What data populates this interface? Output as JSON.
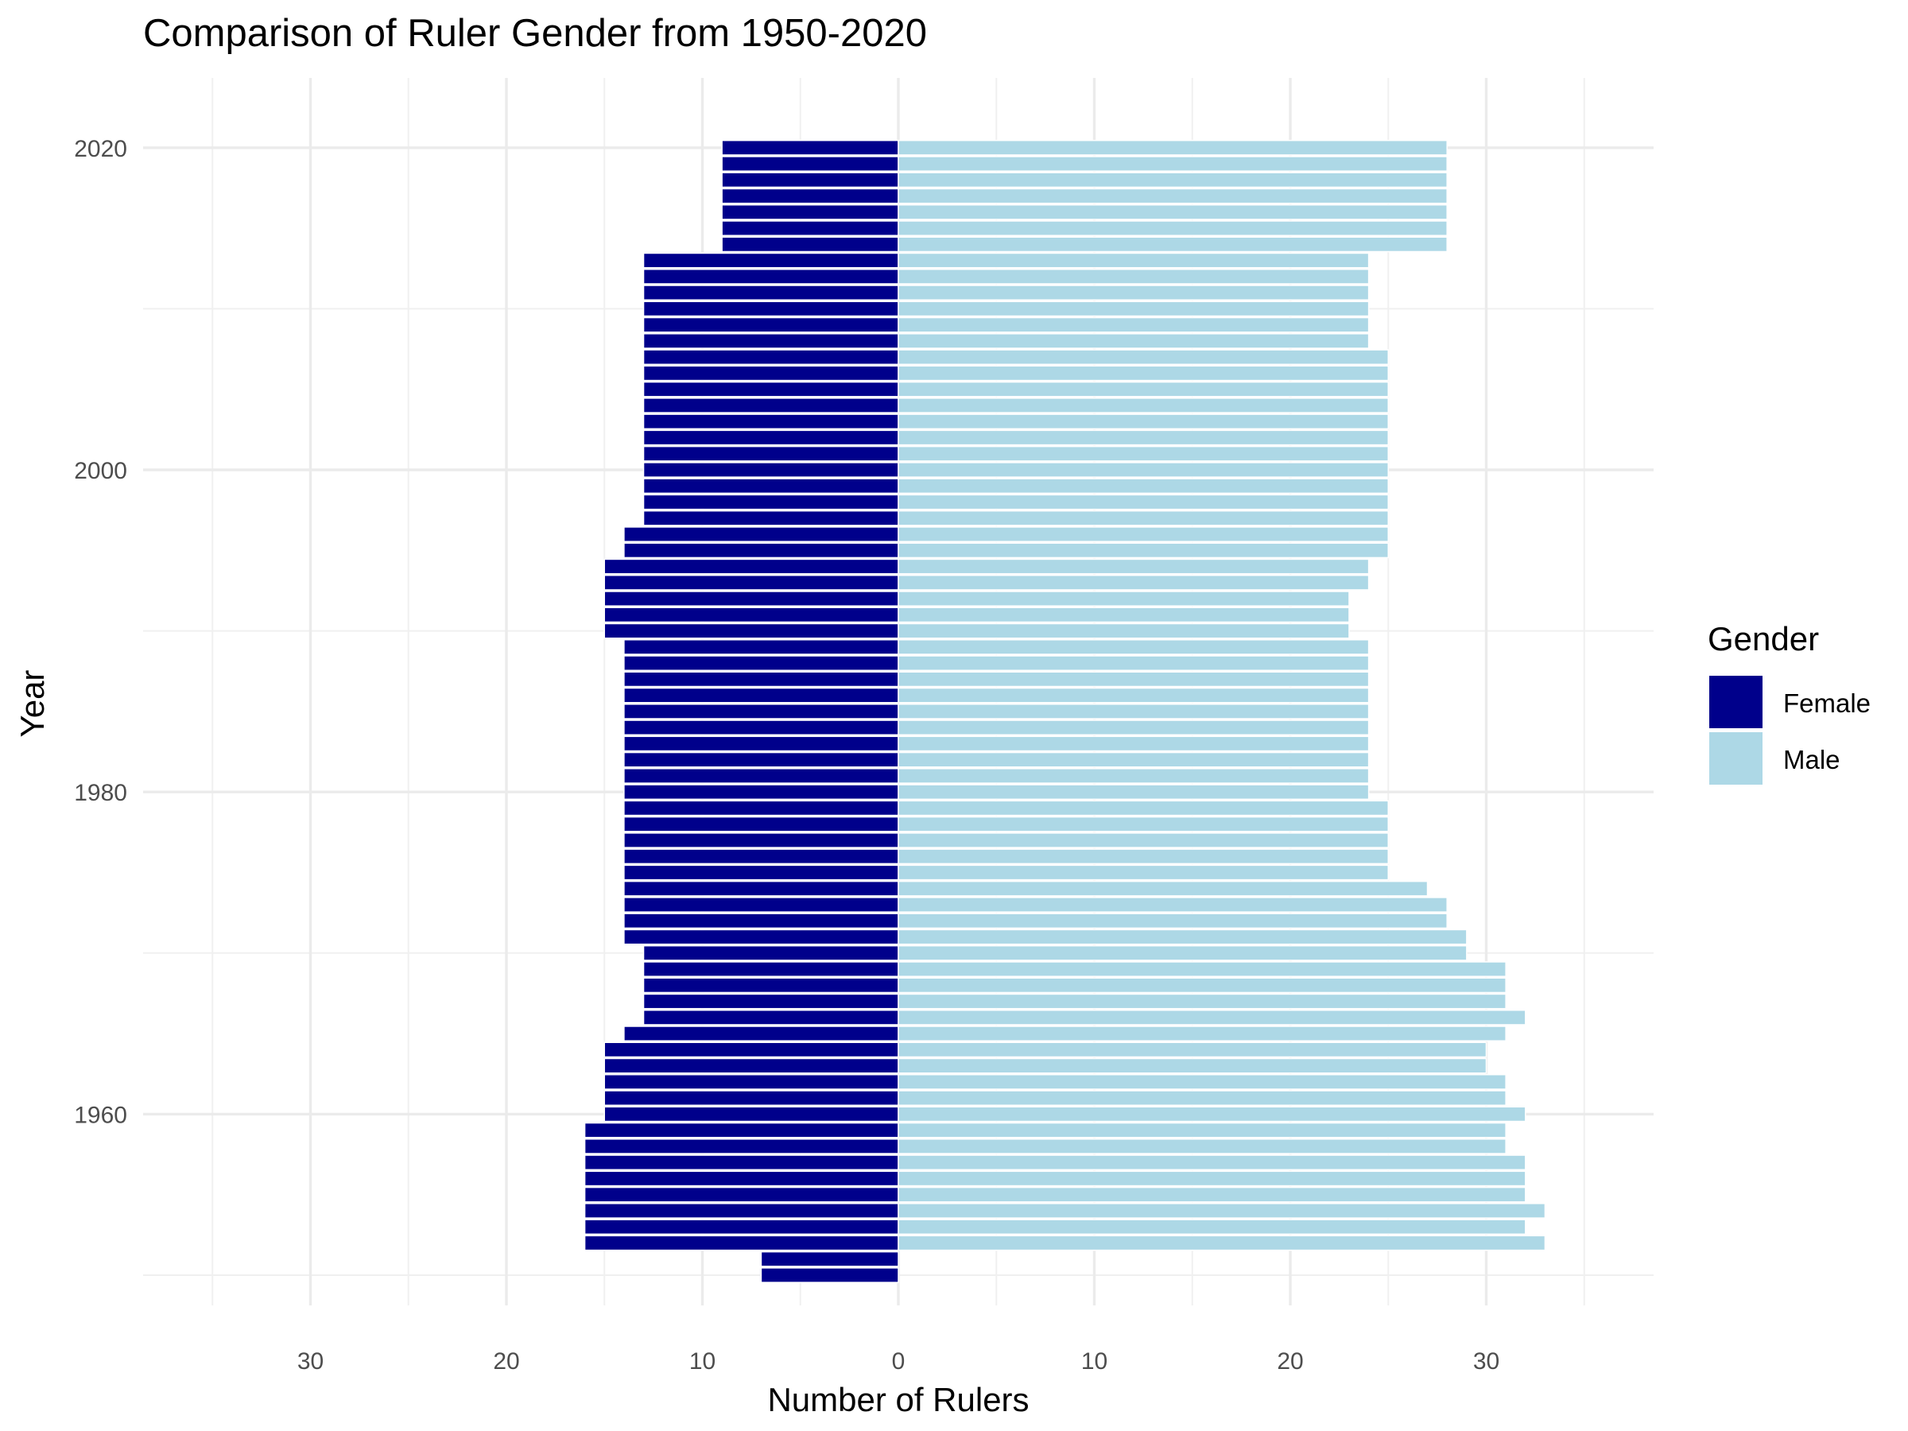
{
  "chart_data": {
    "type": "bar",
    "orientation": "horizontal",
    "layout": "population-pyramid",
    "title": "Comparison of Ruler Gender from 1950-2020",
    "xlabel": "Number of Rulers",
    "ylabel": "Year",
    "x_ticks": [
      {
        "value": -30,
        "label": "30"
      },
      {
        "value": -20,
        "label": "20"
      },
      {
        "value": -10,
        "label": "10"
      },
      {
        "value": 0,
        "label": "0"
      },
      {
        "value": 10,
        "label": "10"
      },
      {
        "value": 20,
        "label": "20"
      },
      {
        "value": 30,
        "label": "30"
      }
    ],
    "y_ticks": [
      1960,
      1980,
      2000,
      2020
    ],
    "xlim": [
      -38,
      38.5
    ],
    "ylim": [
      1946.1,
      2024
    ],
    "grid": true,
    "legend": {
      "title": "Gender",
      "position": "right"
    },
    "years": [
      1950,
      1951,
      1952,
      1953,
      1954,
      1955,
      1956,
      1957,
      1958,
      1959,
      1960,
      1961,
      1962,
      1963,
      1964,
      1965,
      1966,
      1967,
      1968,
      1969,
      1970,
      1971,
      1972,
      1973,
      1974,
      1975,
      1976,
      1977,
      1978,
      1979,
      1980,
      1981,
      1982,
      1983,
      1984,
      1985,
      1986,
      1987,
      1988,
      1989,
      1990,
      1991,
      1992,
      1993,
      1994,
      1995,
      1996,
      1997,
      1998,
      1999,
      2000,
      2001,
      2002,
      2003,
      2004,
      2005,
      2006,
      2007,
      2008,
      2009,
      2010,
      2011,
      2012,
      2013,
      2014,
      2015,
      2016,
      2017,
      2018,
      2019,
      2020
    ],
    "series": [
      {
        "name": "Female",
        "color": "#00008b",
        "values": [
          7,
          7,
          16,
          16,
          16,
          16,
          16,
          16,
          16,
          16,
          15,
          15,
          15,
          15,
          15,
          14,
          13,
          13,
          13,
          13,
          13,
          14,
          14,
          14,
          14,
          14,
          14,
          14,
          14,
          14,
          14,
          14,
          14,
          14,
          14,
          14,
          14,
          14,
          14,
          14,
          15,
          15,
          15,
          15,
          15,
          14,
          14,
          13,
          13,
          13,
          13,
          13,
          13,
          13,
          13,
          13,
          13,
          13,
          13,
          13,
          13,
          13,
          13,
          13,
          9,
          9,
          9,
          9,
          9,
          9,
          9
        ]
      },
      {
        "name": "Male",
        "color": "#add8e6",
        "values": [
          0,
          0,
          33,
          32,
          33,
          32,
          32,
          32,
          31,
          31,
          32,
          31,
          31,
          30,
          30,
          31,
          32,
          31,
          31,
          31,
          29,
          29,
          28,
          28,
          27,
          25,
          25,
          25,
          25,
          25,
          24,
          24,
          24,
          24,
          24,
          24,
          24,
          24,
          24,
          24,
          23,
          23,
          23,
          24,
          24,
          25,
          25,
          25,
          25,
          25,
          25,
          25,
          25,
          25,
          25,
          25,
          25,
          25,
          24,
          24,
          24,
          24,
          24,
          24,
          28,
          28,
          28,
          28,
          28,
          28,
          28
        ]
      }
    ]
  }
}
